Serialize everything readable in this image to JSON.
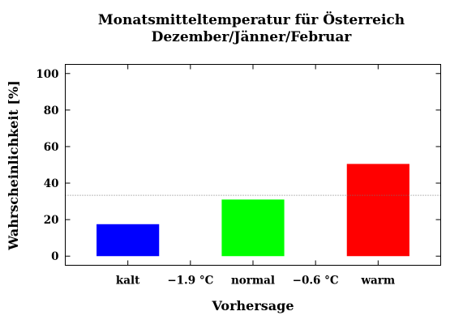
{
  "chart_data": {
    "type": "bar",
    "title": "Monatsmitteltemperatur für Österreich",
    "subtitle": "Dezember/Jänner/Februar",
    "xlabel": "Vorhersage",
    "ylabel": "Wahrscheinlichkeit [%]",
    "categories": [
      "kalt",
      "normal",
      "warm"
    ],
    "values": [
      17.5,
      31,
      50.5
    ],
    "colors": [
      "#0000ff",
      "#00ff00",
      "#ff0000"
    ],
    "boundaries": [
      "−1.9 °C",
      "−0.6 °C"
    ],
    "ylim": [
      -5,
      105
    ],
    "yticks": [
      0,
      20,
      40,
      60,
      80,
      100
    ],
    "reference_line": 33.3,
    "grid": false,
    "legend": "none"
  }
}
